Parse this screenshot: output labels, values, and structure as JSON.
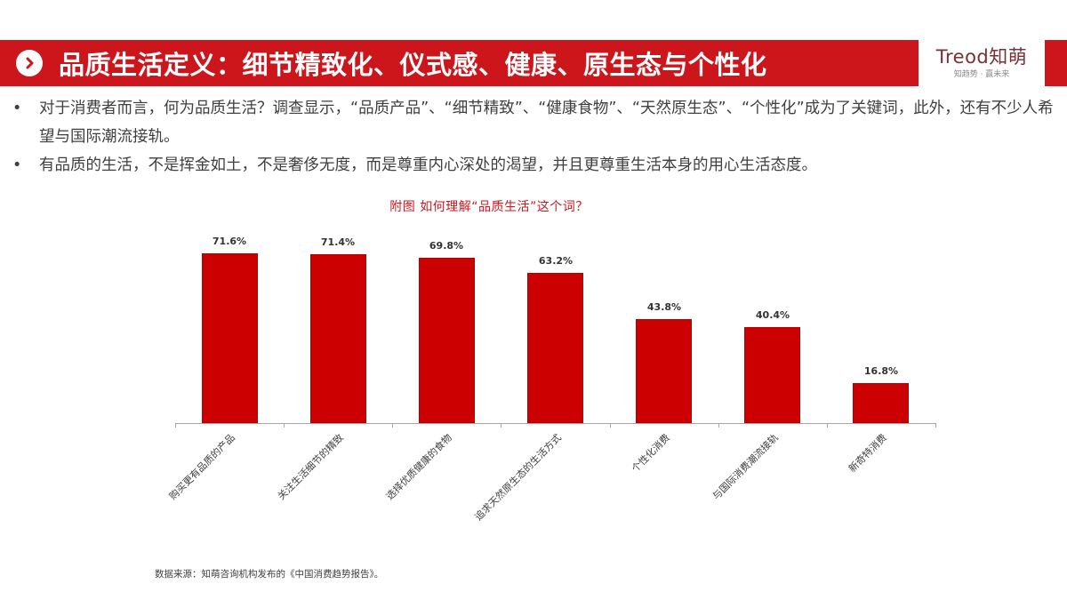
{
  "header": {
    "icon": "chevron-right-circle-icon",
    "title": "品质生活定义：细节精致化、仪式感、健康、原生态与个性化",
    "logo_main": "Treod知萌",
    "logo_sub": "知趋势 · 赢未来",
    "brand_color": "#cc161c"
  },
  "bullets": [
    "对于消费者而言，何为品质生活？调查显示，“品质产品”、“细节精致”、“健康食物”、“天然原生态”、“个性化”成为了关键词，此外，还有不少人希望与国际潮流接轨。",
    "有品质的生活，不是挥金如土，不是奢侈无度，而是尊重内心深处的渴望，并且更尊重生活本身的用心生活态度。"
  ],
  "bullet_symbol": "•",
  "chart_title": "附图  如何理解“品质生活”这个词？",
  "source": "数据来源：知萌咨询机构发布的《中国消费趋势报告》。",
  "chart_data": {
    "type": "bar",
    "title": "附图  如何理解“品质生活”这个词？",
    "categories": [
      "购买更有品质的产品",
      "关注生活细节的精致",
      "选择优质健康的食物",
      "追求天然原生态的生活方式",
      "个性化消费",
      "与国际消费潮流接轨",
      "新奇特消费"
    ],
    "values": [
      71.6,
      71.4,
      69.8,
      63.2,
      43.8,
      40.4,
      16.8
    ],
    "value_labels": [
      "71.6%",
      "71.4%",
      "69.8%",
      "63.2%",
      "43.8%",
      "40.4%",
      "16.8%"
    ],
    "xlabel": "",
    "ylabel": "",
    "ylim": [
      0,
      80
    ],
    "grid": false,
    "legend": "none",
    "bar_color": "#cc0000"
  }
}
